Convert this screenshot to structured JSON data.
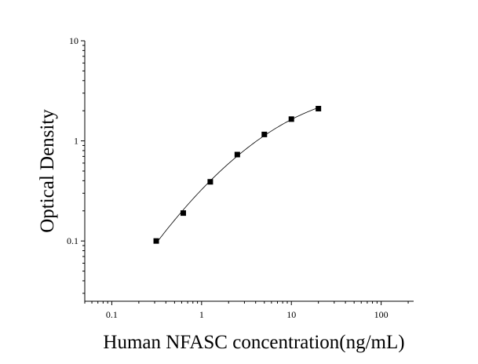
{
  "chart_data": {
    "type": "scatter",
    "title": "",
    "xlabel": "Human NFASC concentration(ng/mL)",
    "ylabel": "Optical Density",
    "x_scale": "log",
    "y_scale": "log",
    "xlim": [
      0.05,
      230
    ],
    "ylim": [
      0.025,
      10
    ],
    "grid": false,
    "legend": "none",
    "x_ticks": [
      {
        "value": 0.1,
        "label": "0.1"
      },
      {
        "value": 1,
        "label": "1"
      },
      {
        "value": 10,
        "label": "10"
      },
      {
        "value": 100,
        "label": "100"
      }
    ],
    "y_ticks": [
      {
        "value": 0.1,
        "label": "0.1"
      },
      {
        "value": 1,
        "label": "1"
      },
      {
        "value": 10,
        "label": "10"
      }
    ],
    "series": [
      {
        "marker": "square",
        "x": [
          0.3125,
          0.625,
          1.25,
          2.5,
          5,
          10,
          20
        ],
        "y": [
          0.1,
          0.19,
          0.39,
          0.73,
          1.16,
          1.65,
          2.1
        ]
      }
    ],
    "fit_curve": true,
    "colors": {
      "marker": "#000000",
      "curve": "#000000",
      "axis": "#000000"
    }
  }
}
